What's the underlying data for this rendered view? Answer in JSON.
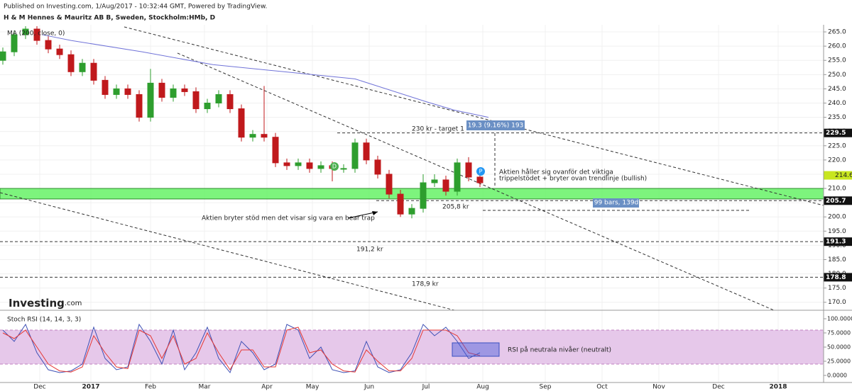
{
  "header": {
    "published": "Published on Investing.com, 1/Aug/2017 - 10:32:44 GMT, Powered by TradingView.",
    "logo": "Investing",
    "logo_suffix": ".com"
  },
  "chart_data": [
    {
      "type": "candlestick",
      "title": "H & M Hennes & Mauritz AB B, Sweden, Stockholm:HMb, D",
      "x": [
        1,
        5,
        9,
        13,
        17,
        21,
        25,
        29,
        33,
        37,
        41,
        45,
        49,
        53,
        57,
        61,
        65,
        69,
        73,
        77,
        81,
        85,
        89,
        93,
        97,
        101,
        105,
        109,
        113,
        117,
        121,
        125,
        129,
        133,
        137,
        141,
        145,
        149,
        153,
        157,
        161,
        165,
        169
      ],
      "open": [
        255,
        258,
        264,
        266,
        262,
        259,
        257,
        251,
        254,
        248,
        243,
        245,
        243,
        235,
        247,
        242,
        245,
        244,
        238,
        240,
        243,
        238,
        228,
        229,
        228,
        219,
        218,
        219,
        217,
        218,
        217,
        217,
        226,
        220,
        215,
        208,
        201,
        203,
        212,
        213,
        209,
        219,
        214
      ],
      "close": [
        258,
        264,
        266,
        262,
        259,
        257,
        251,
        254,
        248,
        243,
        245,
        243,
        235,
        247,
        242,
        245,
        244,
        238,
        240,
        243,
        238,
        228,
        229,
        228,
        219,
        218,
        219,
        217,
        218,
        217,
        217,
        226,
        220,
        215,
        208,
        201,
        203,
        212,
        213,
        209,
        219,
        214,
        212
      ],
      "high": [
        259.5,
        265.5,
        267,
        267,
        263.5,
        260.5,
        258.5,
        255.5,
        255.5,
        249.5,
        246.5,
        246.5,
        244.5,
        252,
        248.5,
        246.5,
        246.5,
        245.5,
        241.5,
        244.5,
        244.5,
        239.5,
        230.5,
        246,
        229.5,
        220.5,
        220.5,
        220.5,
        219.5,
        219.5,
        218.5,
        227.5,
        227.5,
        221.5,
        216.5,
        209.5,
        204.5,
        215,
        215,
        214.5,
        220.5,
        221,
        215
      ],
      "low": [
        253.5,
        256.5,
        262.5,
        260.5,
        257.5,
        255.5,
        249.5,
        249.5,
        246.5,
        241.5,
        241.5,
        241.5,
        233.5,
        233.5,
        240.5,
        240.5,
        242.5,
        236.5,
        236.5,
        238.5,
        236.5,
        226.5,
        226.5,
        226.5,
        217.5,
        216.5,
        216.5,
        215.5,
        215.5,
        212.5,
        215.5,
        215.5,
        218.5,
        213.5,
        206.5,
        200,
        199.5,
        201.5,
        210.5,
        207.5,
        207.5,
        212.5,
        210.5
      ],
      "up_color": "#2e9e2e",
      "down_color": "#c0191c",
      "series": [
        {
          "name": "MA (200, close, 0)",
          "color": "#7073d8",
          "x": [
            15,
            25,
            50,
            75,
            100,
            125,
            150,
            160,
            172
          ],
          "values": [
            264,
            262,
            258,
            253.5,
            251,
            248.5,
            240.5,
            237.5,
            235
          ]
        }
      ],
      "levels": [
        229.5,
        205.7,
        191.3,
        178.8
      ],
      "last_price": 214.6,
      "zone": [
        206.3,
        210
      ],
      "zone_color": "#66f266",
      "annotations": {
        "target": "230 kr - target 1",
        "measure": "19.3 (9.16%) 193",
        "note_1": "Aktien håller sig ovanför det viktiga",
        "note_2": "trippelstödet + bryter ovan trendlinje (bullish)",
        "bars": "99 bars, 139d",
        "level_1": "205,8 kr",
        "level_2": "191,2 kr",
        "level_3": "178,9 kr",
        "bear_trap": "Aktien bryter stöd men det visar sig vara en bear trap",
        "marker_d": "D",
        "marker_p": "P"
      },
      "xlim": [
        0,
        290
      ],
      "ylim": [
        167.2,
        267.5
      ],
      "yticks": [
        {
          "value": 170,
          "label": "170.0"
        },
        {
          "value": 175,
          "label": "175.0"
        },
        {
          "value": 180,
          "label": "180.0"
        },
        {
          "value": 185,
          "label": "185.0"
        },
        {
          "value": 190,
          "label": "190.0"
        },
        {
          "value": 195,
          "label": "195.0"
        },
        {
          "value": 200,
          "label": "200.0"
        },
        {
          "value": 205,
          "label": "205.0"
        },
        {
          "value": 210,
          "label": "210.0"
        },
        {
          "value": 215,
          "label": "215.0"
        },
        {
          "value": 220,
          "label": "220.0"
        },
        {
          "value": 225,
          "label": "225.0"
        },
        {
          "value": 230,
          "label": "230.0"
        },
        {
          "value": 235,
          "label": "235.0"
        },
        {
          "value": 240,
          "label": "240.0"
        },
        {
          "value": 245,
          "label": "245.0"
        },
        {
          "value": 250,
          "label": "250.0"
        },
        {
          "value": 255,
          "label": "255.0"
        },
        {
          "value": 260,
          "label": "260.0"
        },
        {
          "value": 265,
          "label": "265.0"
        }
      ]
    },
    {
      "type": "line",
      "title": "Stoch RSI (14, 14, 3, 3)",
      "x": [
        1,
        5,
        9,
        13,
        17,
        21,
        25,
        29,
        33,
        37,
        41,
        45,
        49,
        53,
        57,
        61,
        65,
        69,
        73,
        77,
        81,
        85,
        89,
        93,
        97,
        101,
        105,
        109,
        113,
        117,
        121,
        125,
        129,
        133,
        137,
        141,
        145,
        149,
        153,
        157,
        161,
        165,
        169
      ],
      "series": [
        {
          "color": "#3f51b5",
          "values": [
            80,
            60,
            90,
            40,
            10,
            5,
            8,
            20,
            85,
            30,
            10,
            15,
            90,
            60,
            20,
            80,
            10,
            40,
            85,
            30,
            5,
            60,
            40,
            10,
            20,
            90,
            80,
            30,
            50,
            10,
            5,
            8,
            60,
            15,
            5,
            10,
            40,
            90,
            70,
            85,
            60,
            30,
            40
          ]
        },
        {
          "color": "#e53935",
          "values": [
            75,
            65,
            80,
            50,
            20,
            8,
            6,
            15,
            70,
            40,
            15,
            12,
            80,
            70,
            30,
            70,
            20,
            30,
            75,
            40,
            10,
            45,
            45,
            15,
            15,
            80,
            85,
            40,
            45,
            20,
            8,
            6,
            45,
            25,
            8,
            8,
            30,
            80,
            80,
            80,
            70,
            40,
            35
          ]
        }
      ],
      "band": [
        20,
        80
      ],
      "band_color": "#e6c8ea",
      "note": "RSI på neutrala nivåer (neutralt)",
      "xlim": [
        0,
        290
      ],
      "ylim": [
        -12.5,
        110
      ],
      "yticks": [
        {
          "value": 0,
          "label": "0.0000"
        },
        {
          "value": 25,
          "label": "25.0000"
        },
        {
          "value": 50,
          "label": "50.0000"
        },
        {
          "value": 75,
          "label": "75.0000"
        },
        {
          "value": 100,
          "label": "100.0000"
        }
      ],
      "xticks": [
        {
          "value": 14,
          "label": "Dec"
        },
        {
          "value": 32,
          "label": "2017"
        },
        {
          "value": 53,
          "label": "Feb"
        },
        {
          "value": 72,
          "label": "Mar"
        },
        {
          "value": 94,
          "label": "Apr"
        },
        {
          "value": 110,
          "label": "May"
        },
        {
          "value": 130,
          "label": "Jun"
        },
        {
          "value": 150,
          "label": "Jul"
        },
        {
          "value": 170,
          "label": "Aug"
        },
        {
          "value": 192,
          "label": "Sep"
        },
        {
          "value": 212,
          "label": "Oct"
        },
        {
          "value": 232,
          "label": "Nov"
        },
        {
          "value": 253,
          "label": "Dec"
        },
        {
          "value": 274,
          "label": "2018"
        }
      ]
    }
  ]
}
